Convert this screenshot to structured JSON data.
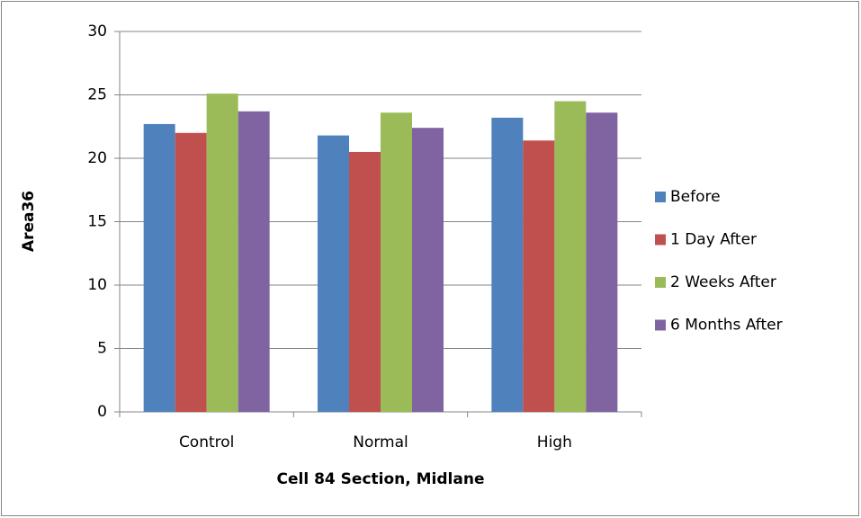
{
  "chart_data": {
    "type": "bar",
    "y_label": "Area36",
    "x_label": "Cell 84 Section, Midlane",
    "categories": [
      "Control",
      "Normal",
      "High"
    ],
    "series": [
      {
        "name": "Before",
        "color": "#4f81bd",
        "values": [
          22.7,
          21.8,
          23.2
        ]
      },
      {
        "name": "1 Day After",
        "color": "#c0504d",
        "values": [
          22.0,
          20.5,
          21.4
        ]
      },
      {
        "name": "2 Weeks After",
        "color": "#9bbb59",
        "values": [
          25.1,
          23.6,
          24.5
        ]
      },
      {
        "name": "6 Months After",
        "color": "#8064a2",
        "values": [
          23.7,
          22.4,
          23.6
        ]
      }
    ],
    "ylim": [
      0,
      30
    ],
    "yticks": [
      0,
      5,
      10,
      15,
      20,
      25,
      30
    ],
    "grid": true,
    "legend": "right"
  }
}
